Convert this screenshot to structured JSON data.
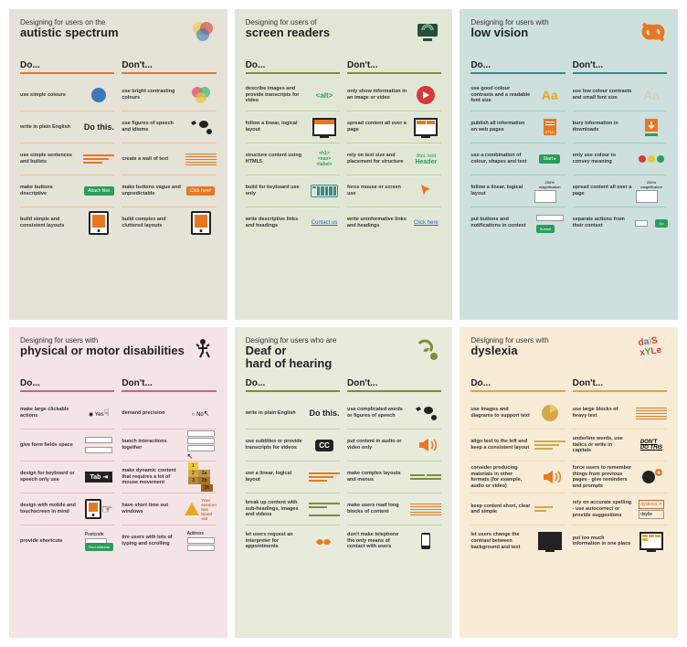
{
  "posters": [
    {
      "bg": "p0",
      "eyebrow": "Designing for users on the",
      "title": "autistic spectrum",
      "do_label": "Do...",
      "dont_label": "Don't...",
      "do": [
        {
          "t": "use simple colours",
          "v": "blue-circle"
        },
        {
          "t": "write in plain English",
          "v": "do-this"
        },
        {
          "t": "use simple sentences and bullets",
          "v": "lines-o"
        },
        {
          "t": "make buttons descriptive",
          "v": "btn-attach"
        },
        {
          "t": "build simple and consistent layouts",
          "v": "tablet-o"
        }
      ],
      "dont": [
        {
          "t": "use bright contrasting colours",
          "v": "venn"
        },
        {
          "t": "use figures of speech and idioms",
          "v": "misc-icons"
        },
        {
          "t": "create a wall of text",
          "v": "lines-dense"
        },
        {
          "t": "make buttons vague and unpredictable",
          "v": "btn-click"
        },
        {
          "t": "build complex and cluttered layouts",
          "v": "tablet-o"
        }
      ]
    },
    {
      "bg": "p1",
      "eyebrow": "Designing for users of",
      "title": "screen readers",
      "do_label": "Do...",
      "dont_label": "Don't...",
      "do": [
        {
          "t": "describe images and provide transcripts for video",
          "v": "alt-tag"
        },
        {
          "t": "follow a linear, logical layout",
          "v": "mon-g"
        },
        {
          "t": "structure content using HTML5",
          "v": "h1-nav"
        },
        {
          "t": "build for keyboard use only",
          "v": "keyboard"
        },
        {
          "t": "write descriptive links and headings",
          "v": "link-contact"
        }
      ],
      "dont": [
        {
          "t": "only show information in an image or video",
          "v": "play-red"
        },
        {
          "t": "spread content all over a page",
          "v": "mon-scatter"
        },
        {
          "t": "rely on text size and placement for structure",
          "v": "header-txt"
        },
        {
          "t": "force mouse or screen use",
          "v": "cursor-o"
        },
        {
          "t": "write uninformative links and headings",
          "v": "link-click"
        }
      ]
    },
    {
      "bg": "p2",
      "eyebrow": "Designing for users with",
      "title": "low vision",
      "do_label": "Do...",
      "dont_label": "Don't...",
      "do": [
        {
          "t": "use good colour contrasts and a readable font size",
          "v": "aa-good"
        },
        {
          "t": "publish all information on web pages",
          "v": "html-doc"
        },
        {
          "t": "use a combination of colour, shapes and text",
          "v": "btn-start"
        },
        {
          "t": "follow a linear, logical layout",
          "v": "mag-200"
        },
        {
          "t": "put buttons and notifications in context",
          "v": "input-btn"
        }
      ],
      "dont": [
        {
          "t": "use low colour contrasts and small font size",
          "v": "aa-bad"
        },
        {
          "t": "bury information in downloads",
          "v": "download-o"
        },
        {
          "t": "only use colour to convey meaning",
          "v": "dots-rgb"
        },
        {
          "t": "spread content all over a page",
          "v": "mag-200"
        },
        {
          "t": "separate actions from their context",
          "v": "input-btn-far"
        }
      ]
    },
    {
      "bg": "p3",
      "eyebrow": "Designing for users with",
      "title": "physical or motor disabilities",
      "do_label": "Do...",
      "dont_label": "Don't...",
      "do": [
        {
          "t": "make large clickable actions",
          "v": "radio-yes"
        },
        {
          "t": "give form fields space",
          "v": "inputs-spaced"
        },
        {
          "t": "design for keyboard or speech only use",
          "v": "tab-key"
        },
        {
          "t": "design with mobile and touchscreen in mind",
          "v": "tablet-hand"
        },
        {
          "t": "provide shortcuts",
          "v": "postcode"
        }
      ],
      "dont": [
        {
          "t": "demand precision",
          "v": "radio-no"
        },
        {
          "t": "bunch interactions together",
          "v": "inputs-bunch"
        },
        {
          "t": "make dynamic content that requires a lot of mouse movement",
          "v": "grid-123"
        },
        {
          "t": "have short time out windows",
          "v": "alert-timeout"
        },
        {
          "t": "tire users with lots of typing and scrolling",
          "v": "address"
        }
      ]
    },
    {
      "bg": "p4",
      "eyebrow": "Designing for users who are",
      "title": "Deaf or\nhard of hearing",
      "do_label": "Do...",
      "dont_label": "Don't...",
      "do": [
        {
          "t": "write in plain English",
          "v": "do-this"
        },
        {
          "t": "use subtitles or provide transcripts for videos",
          "v": "cc"
        },
        {
          "t": "use a linear, logical layout",
          "v": "lines-o"
        },
        {
          "t": "break up content with sub-headings, images and videos",
          "v": "lines-break"
        },
        {
          "t": "let users request an interpreter for appointments",
          "v": "hands"
        }
      ],
      "dont": [
        {
          "t": "use complicated words or figures of speech",
          "v": "misc-icons"
        },
        {
          "t": "put content in audio or video only",
          "v": "speaker"
        },
        {
          "t": "make complex layouts and menus",
          "v": "lines-complex"
        },
        {
          "t": "make users read long blocks of content",
          "v": "lines-dense"
        },
        {
          "t": "don't make telephone the only means of contact with users",
          "v": "phone"
        }
      ]
    },
    {
      "bg": "p5",
      "eyebrow": "Designing for users with",
      "title": "dyslexia",
      "do_label": "Do...",
      "dont_label": "Don't...",
      "do": [
        {
          "t": "use images and diagrams to support text",
          "v": "pie"
        },
        {
          "t": "align text to the left and keep a consistent layout",
          "v": "lines-left"
        },
        {
          "t": "consider producing materials in other formats (for example, audio or video)",
          "v": "speaker"
        },
        {
          "t": "keep content short, clear and simple",
          "v": "lines-simple"
        },
        {
          "t": "let users change the contrast between background and text",
          "v": "mon-dark"
        }
      ],
      "dont": [
        {
          "t": "use large blocks of heavy text",
          "v": "lines-dense"
        },
        {
          "t": "underline words, use italics or write in capitals",
          "v": "dont-do-this"
        },
        {
          "t": "force users to remember things from previous pages - give reminders and prompts",
          "v": "head-gear"
        },
        {
          "t": "rely on accurate spelling - use autocorrect or provide suggestions",
          "v": "spelling"
        },
        {
          "t": "put too much information in one place",
          "v": "mon-clutter"
        }
      ]
    }
  ]
}
